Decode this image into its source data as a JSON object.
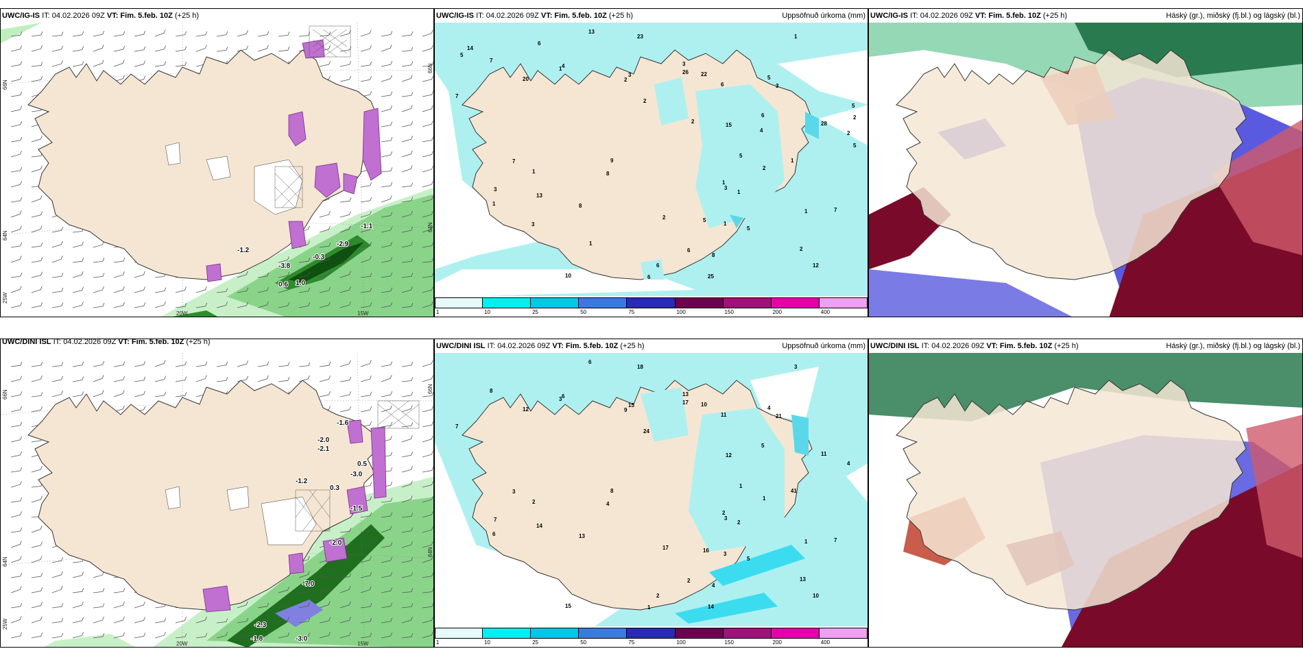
{
  "panels": {
    "p1": {
      "model": "UWC/IG-IS",
      "it": "IT: 04.02.2026 09Z",
      "vt": "VT: Fim. 5.feb. 10Z",
      "lead": "(+25 h)",
      "right": ""
    },
    "p2": {
      "model": "UWC/IG-IS",
      "it": "IT: 04.02.2026 09Z",
      "vt": "VT: Fim. 5.feb. 10Z",
      "lead": "(+25 h)",
      "right": "Uppsöfnuð úrkoma (mm)"
    },
    "p3": {
      "model": "UWC/IG-IS",
      "it": "IT: 04.02.2026 09Z",
      "vt": "VT: Fim. 5.feb. 10Z",
      "lead": "(+25 h)",
      "right": "Háský (gr.), miðský (fj.bl.) og lágský (bl.)"
    },
    "p4": {
      "model": "UWC/DINI ISL",
      "it": "IT: 04.02.2026 09Z",
      "vt": "VT: Fim. 5.feb. 10Z",
      "lead": "(+25 h)",
      "right": ""
    },
    "p5": {
      "model": "UWC/DINI ISL",
      "it": "IT: 04.02.2026 09Z",
      "vt": "VT: Fim. 5.feb. 10Z",
      "lead": "(+25 h)",
      "right": "Uppsöfnuð úrkoma (mm)"
    },
    "p6": {
      "model": "UWC/DINI ISL",
      "it": "IT: 04.02.2026 09Z",
      "vt": "VT: Fim. 5.feb. 10Z",
      "lead": "(+25 h)",
      "right": "Háský (gr.), miðský (fj.bl.) og lágský (bl.)"
    }
  },
  "axes": {
    "lat_top": "66N",
    "lat_mid": "64N",
    "lat_left": "25W",
    "lon_a": "20W",
    "lon_b": "15W",
    "lat_right_top": "66N",
    "lat_right_mid": "64N"
  },
  "colorbar": {
    "ticks": [
      "1",
      "10",
      "25",
      "50",
      "75",
      "100",
      "150",
      "200",
      "400"
    ],
    "colors": [
      "#e6fafa",
      "#00f0f0",
      "#00c8e6",
      "#3a7ae0",
      "#2a2ab8",
      "#6e0050",
      "#a0127a",
      "#e600aa",
      "#f0a0f0"
    ]
  },
  "p1_labels": [
    "-0.3",
    "-3.8",
    "-2.9",
    "-1.1",
    "0.6",
    "1.0",
    "-1.2"
  ],
  "p4_labels": [
    "-2.0",
    "-2.1",
    "-1.6",
    "0.5",
    "0.3",
    "-3.0",
    "-1.2",
    "-7.0",
    "-2.3",
    "-2.0",
    "-1.5",
    "-1.8",
    "-3.0"
  ],
  "p2_precip": [
    "2",
    "1",
    "1",
    "2",
    "1",
    "1",
    "1",
    "1",
    "1",
    "1",
    "2",
    "3",
    "3",
    "2",
    "1",
    "3",
    "2",
    "2",
    "3",
    "5",
    "6",
    "12",
    "13",
    "15",
    "28",
    "26",
    "23",
    "25",
    "10",
    "8",
    "20",
    "22",
    "9",
    "7",
    "4",
    "6",
    "5",
    "7",
    "6",
    "6",
    "13",
    "7",
    "5",
    "8",
    "6",
    "5",
    "7",
    "8",
    "3",
    "5",
    "5",
    "1",
    "2",
    "3",
    "4",
    "14",
    "6",
    "2",
    "5"
  ],
  "p5_precip": [
    "1",
    "1",
    "3",
    "4",
    "2",
    "3",
    "2",
    "2",
    "3",
    "6",
    "9",
    "7",
    "13",
    "24",
    "41",
    "21",
    "13",
    "17",
    "15",
    "16",
    "11",
    "10",
    "14",
    "12",
    "11",
    "17",
    "18",
    "14",
    "15",
    "13",
    "12",
    "10",
    "8",
    "7",
    "6",
    "5",
    "4",
    "3",
    "2",
    "1",
    "6",
    "8",
    "5",
    "4",
    "2",
    "1",
    "7",
    "4",
    "3"
  ]
}
